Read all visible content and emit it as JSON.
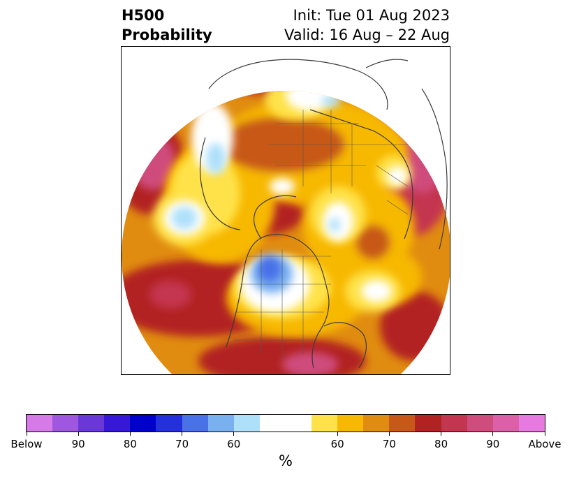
{
  "title": {
    "variable": "H500",
    "product": "Probability",
    "init": "Init: Tue 01 Aug 2023",
    "valid": "Valid: 16 Aug – 22 Aug"
  },
  "colorbar": {
    "unit": "%",
    "tick_labels": [
      "Below",
      "90",
      "80",
      "70",
      "60",
      "60",
      "70",
      "80",
      "90",
      "Above"
    ],
    "below_colors": [
      "#d67ae8",
      "#a057e0",
      "#6a38d8",
      "#3718d8",
      "#0000cc",
      "#2430dc",
      "#4a72e8",
      "#78b0f0",
      "#aee0fa"
    ],
    "neutral_color": "#ffffff",
    "above_colors": [
      "#ffe24a",
      "#f7b800",
      "#e08c10",
      "#c85818",
      "#b22222",
      "#c43550",
      "#cf4c7c",
      "#dc60a8",
      "#e67ae0"
    ]
  },
  "map": {
    "projection": "north polar stereographic",
    "colors": {
      "coast": "#3a3a3a",
      "border": "#555555"
    }
  }
}
